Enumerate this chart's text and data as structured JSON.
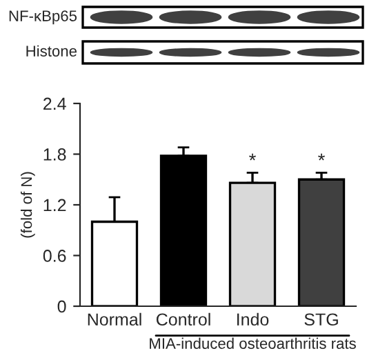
{
  "chart_data": {
    "type": "bar",
    "ylabel": "(fold of N)",
    "xlabel": "MIA-induced osteoarthritis rats",
    "categories": [
      "Normal",
      "Control",
      "Indo",
      "STG"
    ],
    "values": [
      1.0,
      1.78,
      1.46,
      1.5
    ],
    "colors": [
      "#ffffff",
      "#000000",
      "#d9d9d9",
      "#404040"
    ],
    "errors": [
      [
        1.0,
        1.29
      ],
      [
        1.78,
        1.88
      ],
      [
        1.46,
        1.58
      ],
      [
        1.5,
        1.58
      ]
    ],
    "ylim": [
      0,
      2.4
    ],
    "yticks": [
      0,
      0.6,
      1.2,
      1.8,
      2.4
    ],
    "grid": false,
    "annotations": [
      "NF-κBp65",
      "Histone",
      {
        "text": "*",
        "x": "Indo",
        "y": 1.58
      },
      {
        "text": "*",
        "x": "STG",
        "y": 1.58
      }
    ]
  }
}
